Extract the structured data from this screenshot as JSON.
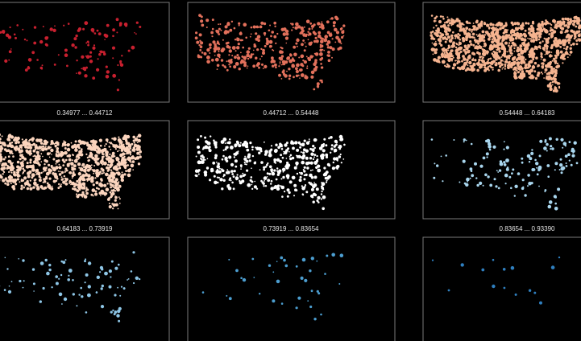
{
  "labels": [
    "0.34977 ... 0.44712",
    "0.44712 ... 0.54448",
    "0.54448 ... 0.64183",
    "0.64183 ... 0.73919",
    "0.73919 ... 0.83654",
    "0.83654 ... 0.93390"
  ]
}
